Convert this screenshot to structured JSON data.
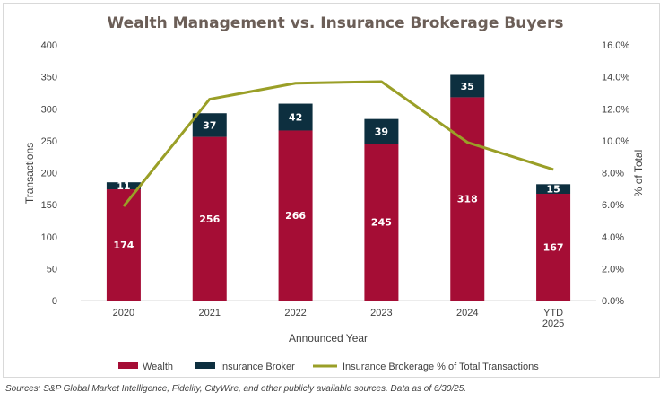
{
  "chart_data": {
    "type": "bar",
    "stacked": true,
    "title": "Wealth Management vs. Insurance Brokerage Buyers",
    "xlabel": "Announced Year",
    "ylabel": "Transactions",
    "y2label": "% of Total",
    "categories": [
      [
        "2020"
      ],
      [
        "2021"
      ],
      [
        "2022"
      ],
      [
        "2023"
      ],
      [
        "2024"
      ],
      [
        "YTD",
        "2025"
      ]
    ],
    "ylim": [
      0,
      400
    ],
    "yticks": [
      0,
      50,
      100,
      150,
      200,
      250,
      300,
      350,
      400
    ],
    "y2lim": [
      0,
      16
    ],
    "y2ticks": [
      "0.0%",
      "2.0%",
      "4.0%",
      "6.0%",
      "8.0%",
      "10.0%",
      "12.0%",
      "14.0%",
      "16.0%"
    ],
    "grid": false,
    "legend_position": "bottom",
    "series": [
      {
        "name": "Wealth",
        "kind": "bar",
        "color": "#a50d35",
        "values": [
          174,
          256,
          266,
          245,
          318,
          167
        ]
      },
      {
        "name": "Insurance Broker",
        "kind": "bar",
        "color": "#0d2f3f",
        "values": [
          11,
          37,
          42,
          39,
          35,
          15
        ]
      },
      {
        "name": "Insurance Brokerage % of Total Transactions",
        "kind": "line",
        "axis": "secondary",
        "color": "#9a9f27",
        "values": [
          5.9,
          12.6,
          13.6,
          13.7,
          9.9,
          8.2
        ]
      }
    ]
  },
  "source_note": "Sources: S&P Global Market Intelligence, Fidelity, CityWire, and other publicly available sources. Data as of 6/30/25."
}
